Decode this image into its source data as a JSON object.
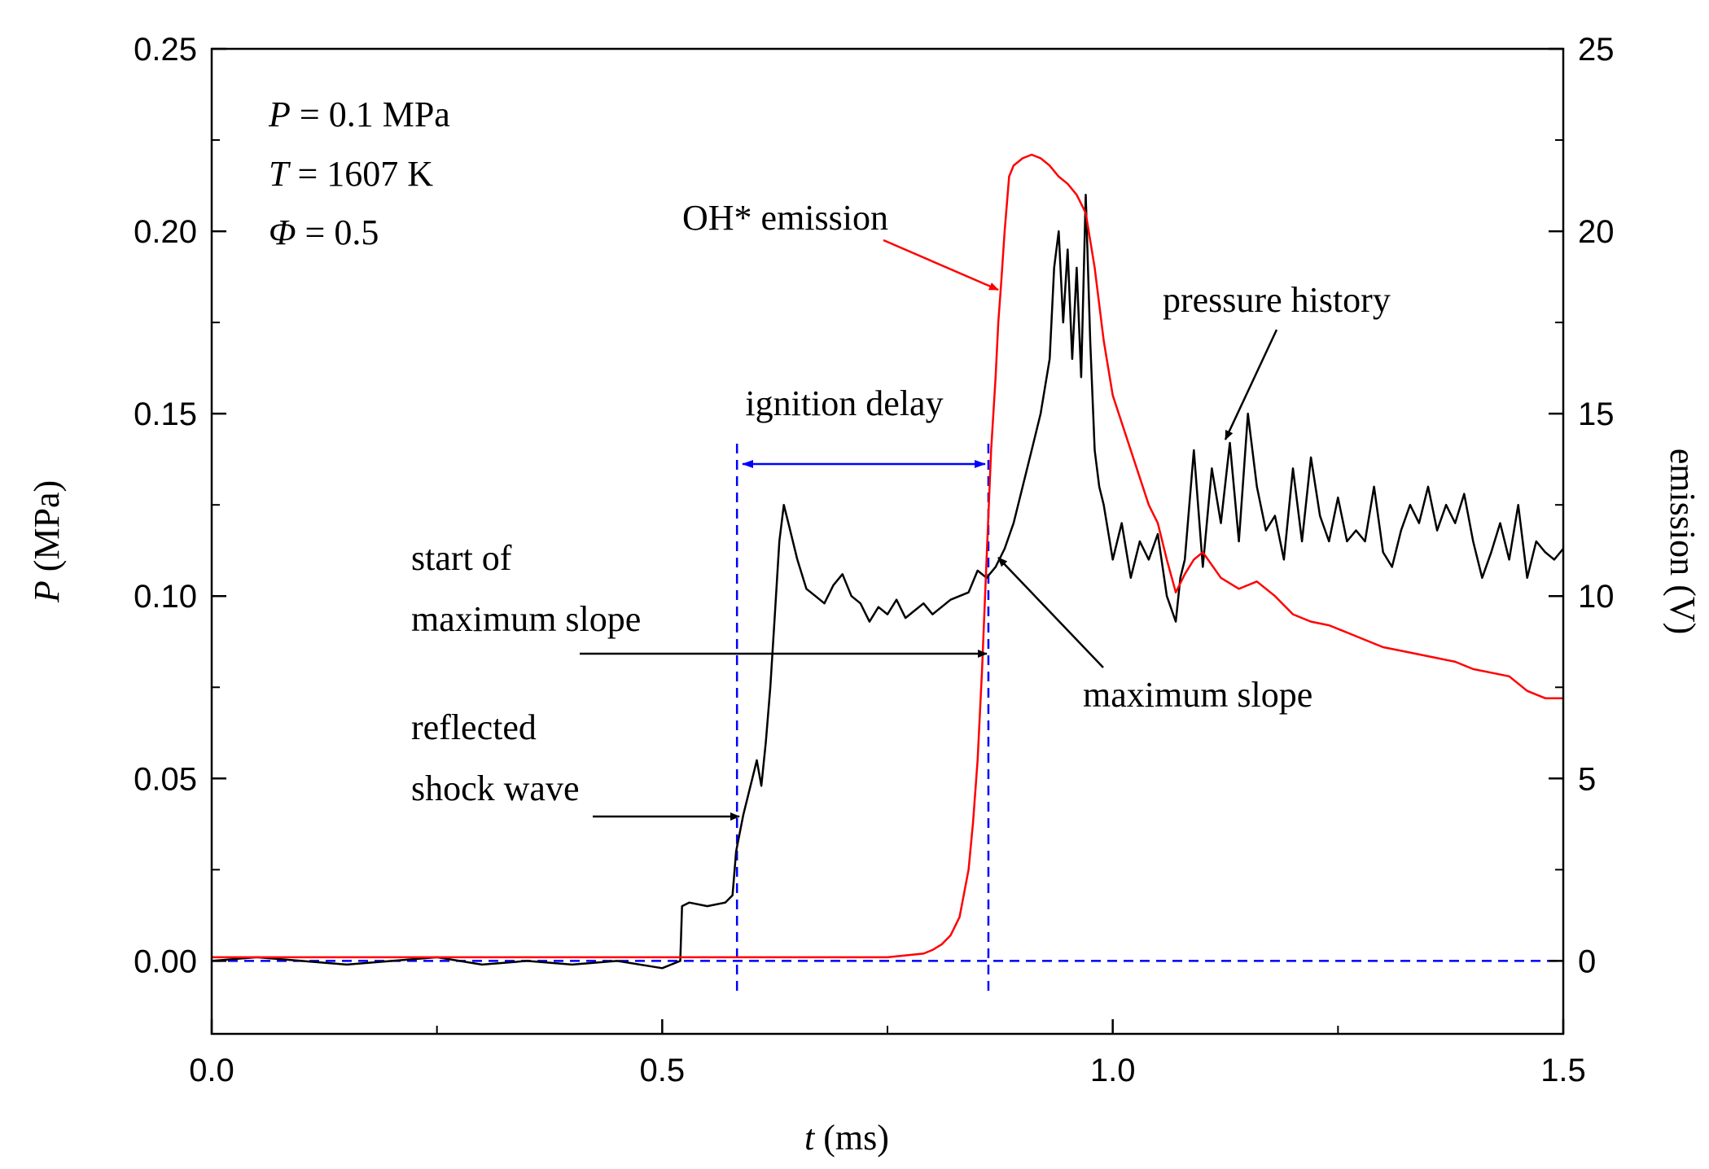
{
  "chart_data": {
    "type": "line",
    "title": "",
    "xlabel": {
      "italic": "t",
      "rest": " (ms)"
    },
    "ylabel_left": {
      "italic": "P",
      "rest": " (MPa)"
    },
    "ylabel_right": "emission (V)",
    "xlim": [
      0,
      1.5
    ],
    "ylim_left": [
      -0.02,
      0.25
    ],
    "ylim_right": [
      -2,
      25
    ],
    "x_ticks": [
      0.0,
      0.5,
      1.0,
      1.5
    ],
    "x_tick_labels": [
      "0.0",
      "0.5",
      "1.0",
      "1.5"
    ],
    "y_left_ticks": [
      0.0,
      0.05,
      0.1,
      0.15,
      0.2,
      0.25
    ],
    "y_left_tick_labels": [
      "0.00",
      "0.05",
      "0.10",
      "0.15",
      "0.20",
      "0.25"
    ],
    "y_right_ticks": [
      0,
      5,
      10,
      15,
      20,
      25
    ],
    "y_right_tick_labels": [
      "0",
      "5",
      "10",
      "15",
      "20",
      "25"
    ],
    "conditions": [
      {
        "sym": "P",
        "text": " = 0.1 MPa"
      },
      {
        "sym": "T",
        "text": " = 1607 K"
      },
      {
        "sym": "Φ",
        "text": " = 0.5"
      }
    ],
    "series": [
      {
        "name": "pressure history",
        "axis": "left",
        "color": "#000000",
        "x": [
          0.0,
          0.05,
          0.1,
          0.15,
          0.2,
          0.25,
          0.3,
          0.35,
          0.4,
          0.45,
          0.5,
          0.52,
          0.522,
          0.53,
          0.55,
          0.57,
          0.578,
          0.582,
          0.59,
          0.6,
          0.605,
          0.61,
          0.615,
          0.62,
          0.625,
          0.63,
          0.635,
          0.64,
          0.65,
          0.66,
          0.67,
          0.68,
          0.69,
          0.7,
          0.71,
          0.72,
          0.73,
          0.74,
          0.75,
          0.76,
          0.77,
          0.78,
          0.79,
          0.8,
          0.81,
          0.82,
          0.83,
          0.84,
          0.85,
          0.86,
          0.87,
          0.88,
          0.89,
          0.9,
          0.91,
          0.92,
          0.93,
          0.935,
          0.94,
          0.945,
          0.95,
          0.955,
          0.96,
          0.965,
          0.97,
          0.975,
          0.98,
          0.985,
          0.99,
          1.0,
          1.01,
          1.02,
          1.03,
          1.04,
          1.05,
          1.06,
          1.07,
          1.075,
          1.08,
          1.09,
          1.1,
          1.11,
          1.12,
          1.13,
          1.14,
          1.15,
          1.16,
          1.17,
          1.18,
          1.19,
          1.2,
          1.21,
          1.22,
          1.23,
          1.24,
          1.25,
          1.26,
          1.27,
          1.28,
          1.29,
          1.3,
          1.31,
          1.32,
          1.33,
          1.34,
          1.35,
          1.36,
          1.37,
          1.38,
          1.39,
          1.4,
          1.41,
          1.42,
          1.43,
          1.44,
          1.45,
          1.46,
          1.47,
          1.48,
          1.49,
          1.5
        ],
        "values": [
          0.0,
          0.001,
          0.0,
          -0.001,
          0.0,
          0.001,
          -0.001,
          0.0,
          -0.001,
          0.0,
          -0.002,
          0.0,
          0.015,
          0.016,
          0.015,
          0.016,
          0.018,
          0.03,
          0.04,
          0.05,
          0.055,
          0.048,
          0.06,
          0.075,
          0.095,
          0.115,
          0.125,
          0.12,
          0.11,
          0.102,
          0.1,
          0.098,
          0.103,
          0.106,
          0.1,
          0.098,
          0.093,
          0.097,
          0.095,
          0.099,
          0.094,
          0.096,
          0.098,
          0.095,
          0.097,
          0.099,
          0.1,
          0.101,
          0.107,
          0.105,
          0.108,
          0.113,
          0.12,
          0.13,
          0.14,
          0.15,
          0.165,
          0.19,
          0.2,
          0.175,
          0.195,
          0.165,
          0.19,
          0.16,
          0.21,
          0.17,
          0.14,
          0.13,
          0.125,
          0.11,
          0.12,
          0.105,
          0.115,
          0.11,
          0.117,
          0.1,
          0.093,
          0.105,
          0.11,
          0.14,
          0.108,
          0.135,
          0.12,
          0.142,
          0.115,
          0.15,
          0.13,
          0.118,
          0.122,
          0.11,
          0.135,
          0.115,
          0.138,
          0.122,
          0.115,
          0.127,
          0.115,
          0.118,
          0.115,
          0.13,
          0.112,
          0.108,
          0.118,
          0.125,
          0.12,
          0.13,
          0.118,
          0.125,
          0.12,
          0.128,
          0.115,
          0.105,
          0.112,
          0.12,
          0.11,
          0.125,
          0.105,
          0.115,
          0.112,
          0.11,
          0.113
        ]
      },
      {
        "name": "OH* emission",
        "axis": "right",
        "color": "#ff0000",
        "x": [
          0.0,
          0.1,
          0.2,
          0.3,
          0.4,
          0.5,
          0.6,
          0.7,
          0.75,
          0.77,
          0.79,
          0.8,
          0.81,
          0.82,
          0.83,
          0.84,
          0.845,
          0.85,
          0.855,
          0.86,
          0.865,
          0.87,
          0.873,
          0.876,
          0.88,
          0.885,
          0.89,
          0.9,
          0.91,
          0.92,
          0.93,
          0.94,
          0.95,
          0.96,
          0.97,
          0.98,
          0.99,
          1.0,
          1.02,
          1.04,
          1.05,
          1.06,
          1.07,
          1.08,
          1.09,
          1.1,
          1.12,
          1.14,
          1.16,
          1.18,
          1.2,
          1.22,
          1.24,
          1.26,
          1.28,
          1.3,
          1.32,
          1.34,
          1.36,
          1.38,
          1.4,
          1.42,
          1.44,
          1.46,
          1.48,
          1.5
        ],
        "values": [
          0.1,
          0.1,
          0.1,
          0.1,
          0.1,
          0.1,
          0.1,
          0.1,
          0.1,
          0.15,
          0.2,
          0.3,
          0.45,
          0.7,
          1.2,
          2.5,
          3.8,
          5.5,
          8.0,
          11.0,
          14.0,
          16.0,
          17.5,
          18.5,
          20.0,
          21.5,
          21.8,
          22.0,
          22.1,
          22.0,
          21.8,
          21.5,
          21.3,
          21.0,
          20.5,
          19.0,
          17.0,
          15.5,
          14.0,
          12.5,
          12.0,
          11.0,
          10.1,
          10.6,
          11.0,
          11.2,
          10.5,
          10.2,
          10.4,
          10.0,
          9.5,
          9.3,
          9.2,
          9.0,
          8.8,
          8.6,
          8.5,
          8.4,
          8.3,
          8.2,
          8.0,
          7.9,
          7.8,
          7.4,
          7.2,
          7.2
        ]
      }
    ],
    "reference_lines": [
      {
        "name": "reflected-shock-time",
        "type": "vertical",
        "x": 0.583,
        "color": "#0000ff",
        "style": "dashed"
      },
      {
        "name": "ignition-time",
        "type": "vertical",
        "x": 0.862,
        "color": "#0000ff",
        "style": "dashed"
      },
      {
        "name": "zero-baseline",
        "type": "horizontal",
        "y": 0.0,
        "color": "#0000ff",
        "style": "dashed"
      }
    ],
    "annotations": {
      "ignition_delay": {
        "lines": [
          "ignition delay"
        ],
        "color": "#0000ff"
      },
      "oh_emission": {
        "lines": [
          "OH* emission"
        ],
        "color": "#ff0000"
      },
      "pressure_history": {
        "lines": [
          "pressure history"
        ],
        "color": "#000000"
      },
      "start_max_slope": {
        "lines": [
          "start of",
          "maximum slope"
        ],
        "color": "#000000"
      },
      "max_slope": {
        "lines": [
          "maximum slope"
        ],
        "color": "#000000"
      },
      "reflected_shock": {
        "lines": [
          "reflected",
          "shock wave"
        ],
        "color": "#000000"
      }
    }
  }
}
